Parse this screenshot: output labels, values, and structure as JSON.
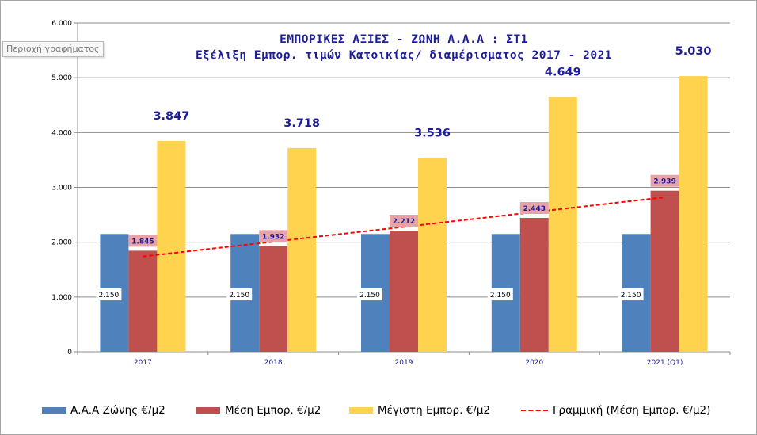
{
  "chart_area_tag": "Περιοχή γραφήματος",
  "chart_data": {
    "type": "bar",
    "title_line1": "ΕΜΠΟΡΙΚΕΣ ΑΞΙΕΣ - ΖΩΝΗ Α.Α.Α : ΣΤ1",
    "title_line2": "Εξέλιξη Εμπορ. τιμών Κατοικίας/ διαμέρισματος 2017 - 2021",
    "categories": [
      "2017",
      "2018",
      "2019",
      "2020",
      "2021 (Q1)"
    ],
    "ylim": [
      0,
      6000
    ],
    "y_ticks": [
      0,
      1000,
      2000,
      3000,
      4000,
      5000,
      6000
    ],
    "y_tick_labels": [
      "0",
      "1.000",
      "2.000",
      "3.000",
      "4.000",
      "5.000",
      "6.000"
    ],
    "grid": true,
    "series": [
      {
        "name": "Α.Α.Α Ζώνης €/μ2",
        "color": "#4f81bd",
        "values": [
          2150,
          2150,
          2150,
          2150,
          2150
        ],
        "labels": [
          "2.150",
          "2.150",
          "2.150",
          "2.150",
          "2.150"
        ]
      },
      {
        "name": "Μέση Εμπορ. €/μ2",
        "color": "#c0504d",
        "values": [
          1845,
          1932,
          2212,
          2443,
          2939
        ],
        "labels": [
          "1.845",
          "1.932",
          "2.212",
          "2.443",
          "2.939"
        ]
      },
      {
        "name": "Μέγιστη Εμπορ. €/μ2",
        "color": "#ffd34d",
        "values": [
          3847,
          3718,
          3536,
          4649,
          5030
        ],
        "labels": [
          "3.847",
          "3.718",
          "3.536",
          "4.649",
          "5.030"
        ]
      }
    ],
    "trendline": {
      "name": "Γραμμική (Μέση Εμπορ. €/μ2)",
      "color": "#ff0000",
      "start": 1740,
      "end": 2820
    },
    "legend_position": "bottom"
  }
}
